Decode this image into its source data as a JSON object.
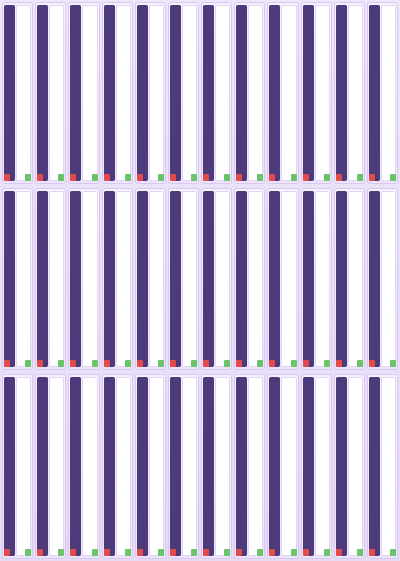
{
  "rows": [
    {
      "cells": [
        {
          "author": "",
          "title": ""
        },
        {
          "author": "",
          "title": ""
        },
        {
          "author": "",
          "title": ""
        },
        {
          "author": "",
          "title": ""
        },
        {
          "author": "",
          "title": ""
        },
        {
          "author": "",
          "title": ""
        },
        {
          "author": "",
          "title": ""
        },
        {
          "author": "",
          "title": ""
        },
        {
          "author": "",
          "title": ""
        },
        {
          "author": "",
          "title": ""
        },
        {
          "author": "",
          "title": ""
        },
        {
          "author": "",
          "title": ""
        }
      ]
    },
    {
      "cells": [
        {
          "author": "",
          "title": ""
        },
        {
          "author": "",
          "title": ""
        },
        {
          "author": "",
          "title": ""
        },
        {
          "author": "",
          "title": ""
        },
        {
          "author": "",
          "title": ""
        },
        {
          "author": "",
          "title": ""
        },
        {
          "author": "",
          "title": ""
        },
        {
          "author": "",
          "title": ""
        },
        {
          "author": "",
          "title": ""
        },
        {
          "author": "",
          "title": ""
        },
        {
          "author": "",
          "title": ""
        },
        {
          "author": "",
          "title": ""
        }
      ]
    },
    {
      "cells": [
        {
          "author": "",
          "title": ""
        },
        {
          "author": "",
          "title": ""
        },
        {
          "author": "",
          "title": ""
        },
        {
          "author": "",
          "title": ""
        },
        {
          "author": "",
          "title": ""
        },
        {
          "author": "",
          "title": ""
        },
        {
          "author": "",
          "title": ""
        },
        {
          "author": "",
          "title": ""
        },
        {
          "author": "",
          "title": ""
        },
        {
          "author": "",
          "title": ""
        },
        {
          "author": "",
          "title": ""
        },
        {
          "author": "",
          "title": ""
        }
      ]
    }
  ],
  "colors": {
    "author_strip": "#4d3a7a",
    "volume_badge": "#6cc46a",
    "new_badge": "#e34b4b"
  }
}
